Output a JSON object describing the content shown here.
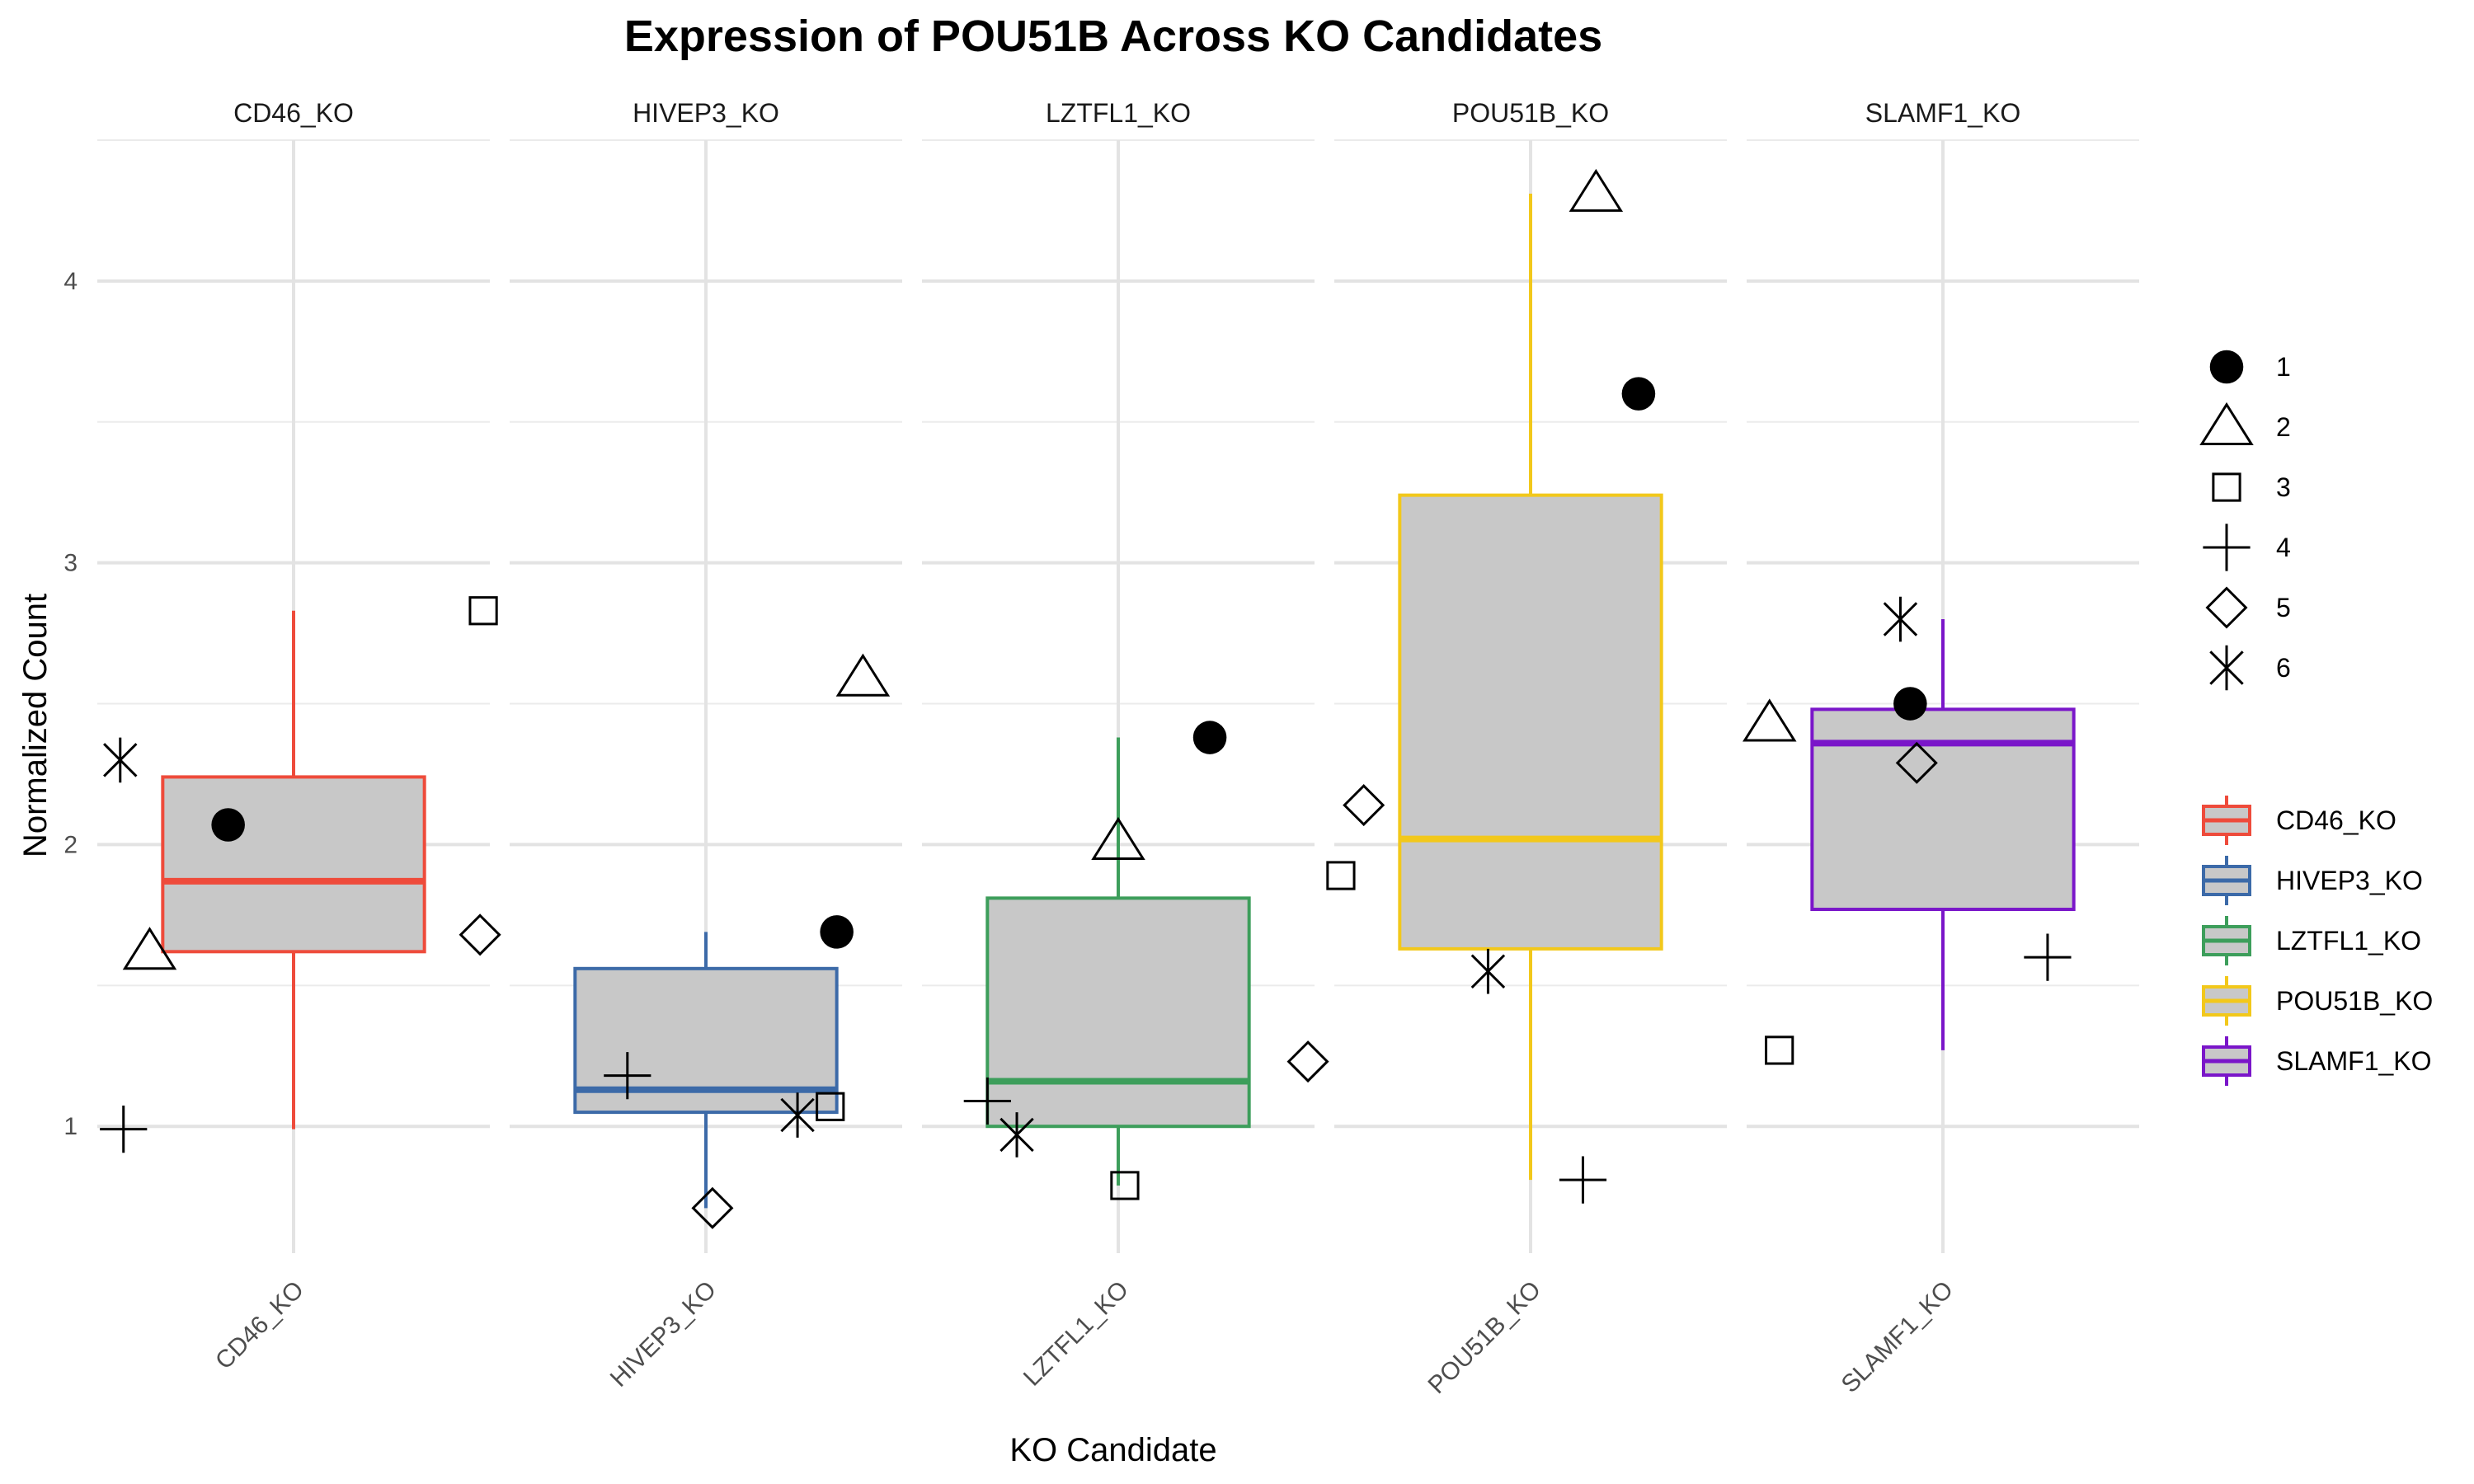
{
  "chart_data": {
    "type": "box",
    "title": "Expression of POU51B Across KO Candidates",
    "xlabel": "KO Candidate",
    "ylabel": "Normalized Count",
    "ylim": [
      0.55,
      4.5
    ],
    "yticks": [
      1,
      2,
      3,
      4
    ],
    "grid": true,
    "facets": [
      "CD46_KO",
      "HIVEP3_KO",
      "LZTFL1_KO",
      "POU51B_KO",
      "SLAMF1_KO"
    ],
    "colors": {
      "CD46_KO": "#EE4B3B",
      "HIVEP3_KO": "#3C6AA8",
      "LZTFL1_KO": "#3D9E5B",
      "POU51B_KO": "#F2C81B",
      "SLAMF1_KO": "#7A16C9"
    },
    "box_fill": "#C8C8C8",
    "boxes": [
      {
        "group": "CD46_KO",
        "q1": 1.62,
        "median": 1.87,
        "q3": 2.24,
        "whisker_low": 0.99,
        "whisker_high": 2.83
      },
      {
        "group": "HIVEP3_KO",
        "q1": 1.05,
        "median": 1.13,
        "q3": 1.56,
        "whisker_low": 0.71,
        "whisker_high": 1.69
      },
      {
        "group": "LZTFL1_KO",
        "q1": 1.0,
        "median": 1.16,
        "q3": 1.81,
        "whisker_low": 0.79,
        "whisker_high": 2.38
      },
      {
        "group": "POU51B_KO",
        "q1": 1.63,
        "median": 2.02,
        "q3": 3.24,
        "whisker_low": 0.81,
        "whisker_high": 4.31
      },
      {
        "group": "SLAMF1_KO",
        "q1": 1.77,
        "median": 2.36,
        "q3": 2.48,
        "whisker_low": 1.27,
        "whisker_high": 2.8
      }
    ],
    "points": [
      {
        "group": "CD46_KO",
        "replicate": "1",
        "y": 2.07,
        "jitter": -0.2
      },
      {
        "group": "CD46_KO",
        "replicate": "2",
        "y": 1.62,
        "jitter": -0.44
      },
      {
        "group": "CD46_KO",
        "replicate": "3",
        "y": 2.83,
        "jitter": 0.58
      },
      {
        "group": "CD46_KO",
        "replicate": "4",
        "y": 0.99,
        "jitter": -0.52
      },
      {
        "group": "CD46_KO",
        "replicate": "5",
        "y": 1.68,
        "jitter": 0.57
      },
      {
        "group": "CD46_KO",
        "replicate": "6",
        "y": 2.3,
        "jitter": -0.53
      },
      {
        "group": "HIVEP3_KO",
        "replicate": "1",
        "y": 1.69,
        "jitter": 0.4
      },
      {
        "group": "HIVEP3_KO",
        "replicate": "2",
        "y": 2.59,
        "jitter": 0.48
      },
      {
        "group": "HIVEP3_KO",
        "replicate": "3",
        "y": 1.07,
        "jitter": 0.38
      },
      {
        "group": "HIVEP3_KO",
        "replicate": "4",
        "y": 1.18,
        "jitter": -0.24
      },
      {
        "group": "HIVEP3_KO",
        "replicate": "5",
        "y": 0.71,
        "jitter": 0.02
      },
      {
        "group": "HIVEP3_KO",
        "replicate": "6",
        "y": 1.04,
        "jitter": 0.28
      },
      {
        "group": "LZTFL1_KO",
        "replicate": "1",
        "y": 2.38,
        "jitter": 0.28
      },
      {
        "group": "LZTFL1_KO",
        "replicate": "2",
        "y": 2.01,
        "jitter": 0.0
      },
      {
        "group": "LZTFL1_KO",
        "replicate": "3",
        "y": 0.79,
        "jitter": 0.02
      },
      {
        "group": "LZTFL1_KO",
        "replicate": "4",
        "y": 1.09,
        "jitter": -0.4
      },
      {
        "group": "LZTFL1_KO",
        "replicate": "5",
        "y": 1.23,
        "jitter": 0.58
      },
      {
        "group": "LZTFL1_KO",
        "replicate": "6",
        "y": 0.97,
        "jitter": -0.31
      },
      {
        "group": "POU51B_KO",
        "replicate": "1",
        "y": 3.6,
        "jitter": 0.33
      },
      {
        "group": "POU51B_KO",
        "replicate": "2",
        "y": 4.31,
        "jitter": 0.2
      },
      {
        "group": "POU51B_KO",
        "replicate": "3",
        "y": 1.89,
        "jitter": -0.58
      },
      {
        "group": "POU51B_KO",
        "replicate": "4",
        "y": 0.81,
        "jitter": 0.16
      },
      {
        "group": "POU51B_KO",
        "replicate": "5",
        "y": 2.14,
        "jitter": -0.51
      },
      {
        "group": "POU51B_KO",
        "replicate": "6",
        "y": 1.55,
        "jitter": -0.13
      },
      {
        "group": "SLAMF1_KO",
        "replicate": "1",
        "y": 2.5,
        "jitter": -0.1
      },
      {
        "group": "SLAMF1_KO",
        "replicate": "2",
        "y": 2.43,
        "jitter": -0.53
      },
      {
        "group": "SLAMF1_KO",
        "replicate": "3",
        "y": 1.27,
        "jitter": -0.5
      },
      {
        "group": "SLAMF1_KO",
        "replicate": "4",
        "y": 1.6,
        "jitter": 0.32
      },
      {
        "group": "SLAMF1_KO",
        "replicate": "5",
        "y": 2.29,
        "jitter": -0.08
      },
      {
        "group": "SLAMF1_KO",
        "replicate": "6",
        "y": 2.8,
        "jitter": -0.13
      }
    ],
    "legend_shapes": [
      {
        "label": "1",
        "shape": "filled-circle"
      },
      {
        "label": "2",
        "shape": "open-triangle"
      },
      {
        "label": "3",
        "shape": "open-square"
      },
      {
        "label": "4",
        "shape": "plus"
      },
      {
        "label": "5",
        "shape": "open-diamond"
      },
      {
        "label": "6",
        "shape": "asterisk"
      }
    ],
    "legend_fill": [
      "CD46_KO",
      "HIVEP3_KO",
      "LZTFL1_KO",
      "POU51B_KO",
      "SLAMF1_KO"
    ],
    "legend_position": "right"
  }
}
